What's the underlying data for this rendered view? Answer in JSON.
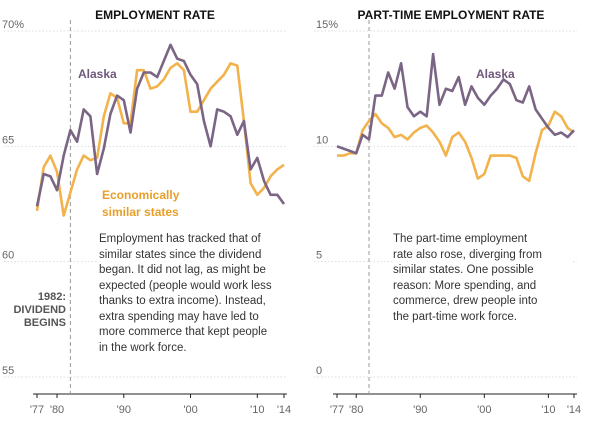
{
  "chart_data": [
    {
      "type": "line",
      "title": "EMPLOYMENT RATE",
      "ylim": [
        55,
        70
      ],
      "xlim": [
        1977,
        2014
      ],
      "y_ticks": [
        "55",
        "60",
        "65",
        "70%"
      ],
      "x_ticks": [
        "'77",
        "'80",
        "'90",
        "'00",
        "'10",
        "'14"
      ],
      "x_tick_years": [
        1977,
        1980,
        1990,
        2000,
        2010,
        2014
      ],
      "marker": {
        "year": 1982,
        "label_lines": [
          "1982:",
          "DIVIDEND",
          "BEGINS"
        ]
      },
      "series": [
        {
          "name": "Alaska",
          "label": "Alaska",
          "x": [
            1977,
            1978,
            1979,
            1980,
            1981,
            1982,
            1983,
            1984,
            1985,
            1986,
            1987,
            1988,
            1989,
            1990,
            1991,
            1992,
            1993,
            1994,
            1995,
            1996,
            1997,
            1998,
            1999,
            2000,
            2001,
            2002,
            2003,
            2004,
            2005,
            2006,
            2007,
            2008,
            2009,
            2010,
            2011,
            2012,
            2013,
            2014
          ],
          "values": [
            62.4,
            63.8,
            63.7,
            63.1,
            64.6,
            65.7,
            65.2,
            66.6,
            66.3,
            63.8,
            64.9,
            66.4,
            67.2,
            67.0,
            65.6,
            67.5,
            68.2,
            68.2,
            68.0,
            68.7,
            69.4,
            68.8,
            68.7,
            68.1,
            67.7,
            66.1,
            65.0,
            66.6,
            66.5,
            66.3,
            65.5,
            66.1,
            64.0,
            64.5,
            63.5,
            62.9,
            62.9,
            62.5
          ]
        },
        {
          "name": "Economically similar states",
          "label_lines": [
            "Economically",
            "similar states"
          ],
          "x": [
            1977,
            1978,
            1979,
            1980,
            1981,
            1982,
            1983,
            1984,
            1985,
            1986,
            1987,
            1988,
            1989,
            1990,
            1991,
            1992,
            1993,
            1994,
            1995,
            1996,
            1997,
            1998,
            1999,
            2000,
            2001,
            2002,
            2003,
            2004,
            2005,
            2006,
            2007,
            2008,
            2009,
            2010,
            2011,
            2012,
            2013,
            2014
          ],
          "values": [
            62.2,
            64.1,
            64.6,
            63.9,
            62.0,
            63.0,
            64.0,
            64.6,
            64.4,
            64.5,
            66.3,
            67.3,
            67.1,
            66.0,
            66.0,
            68.3,
            68.3,
            67.5,
            67.6,
            67.9,
            68.4,
            68.6,
            68.3,
            66.5,
            66.5,
            67.0,
            67.5,
            67.8,
            68.1,
            68.6,
            68.5,
            66.1,
            63.4,
            62.9,
            63.2,
            63.7,
            64.0,
            64.2
          ]
        }
      ],
      "annotation_lines": [
        "Employment has tracked that of",
        "similar states since the dividend",
        "began. It did not lag, as might be",
        "expected (people would work less",
        "thanks to extra income). Instead,",
        "extra spending may have led to",
        "more commerce that kept people",
        "in the work force."
      ]
    },
    {
      "type": "line",
      "title": "PART-TIME EMPLOYMENT RATE",
      "ylim": [
        0,
        15
      ],
      "xlim": [
        1977,
        2014
      ],
      "y_ticks": [
        "0",
        "5",
        "10",
        "15%"
      ],
      "x_ticks": [
        "'77",
        "'80",
        "'90",
        "'00",
        "'10",
        "'14"
      ],
      "x_tick_years": [
        1977,
        1980,
        1990,
        2000,
        2010,
        2014
      ],
      "marker": {
        "year": 1982
      },
      "series": [
        {
          "name": "Alaska",
          "label": "Alaska",
          "x": [
            1977,
            1978,
            1979,
            1980,
            1981,
            1982,
            1983,
            1984,
            1985,
            1986,
            1987,
            1988,
            1989,
            1990,
            1991,
            1992,
            1993,
            1994,
            1995,
            1996,
            1997,
            1998,
            1999,
            2000,
            2001,
            2002,
            2003,
            2004,
            2005,
            2006,
            2007,
            2008,
            2009,
            2010,
            2011,
            2012,
            2013,
            2014
          ],
          "values": [
            10.0,
            9.9,
            9.8,
            9.7,
            10.5,
            10.3,
            12.2,
            12.2,
            13.2,
            12.5,
            13.6,
            11.7,
            11.3,
            11.5,
            11.3,
            14.0,
            11.8,
            12.5,
            12.4,
            13.0,
            11.8,
            12.6,
            12.1,
            11.8,
            12.2,
            12.5,
            12.9,
            12.7,
            12.0,
            11.9,
            12.6,
            11.6,
            11.2,
            10.8,
            10.5,
            10.6,
            10.4,
            10.7
          ]
        },
        {
          "name": "Economically similar states",
          "x": [
            1977,
            1978,
            1979,
            1980,
            1981,
            1982,
            1983,
            1984,
            1985,
            1986,
            1987,
            1988,
            1989,
            1990,
            1991,
            1992,
            1993,
            1994,
            1995,
            1996,
            1997,
            1998,
            1999,
            2000,
            2001,
            2002,
            2003,
            2004,
            2005,
            2006,
            2007,
            2008,
            2009,
            2010,
            2011,
            2012,
            2013,
            2014
          ],
          "values": [
            9.6,
            9.6,
            9.7,
            9.7,
            10.7,
            11.1,
            11.4,
            11.0,
            10.8,
            10.4,
            10.5,
            10.3,
            10.6,
            10.8,
            10.9,
            10.6,
            10.2,
            9.6,
            10.4,
            10.6,
            10.2,
            9.5,
            8.6,
            8.8,
            9.6,
            9.6,
            9.6,
            9.6,
            9.5,
            8.7,
            8.5,
            9.7,
            10.7,
            10.9,
            11.5,
            11.3,
            10.8,
            10.6
          ]
        }
      ],
      "annotation_lines": [
        "The part-time employment",
        "rate also rose, diverging from",
        "similar states. One possible",
        "reason: More spending, and",
        "commerce, drew people into",
        "the part-time work force."
      ]
    }
  ]
}
